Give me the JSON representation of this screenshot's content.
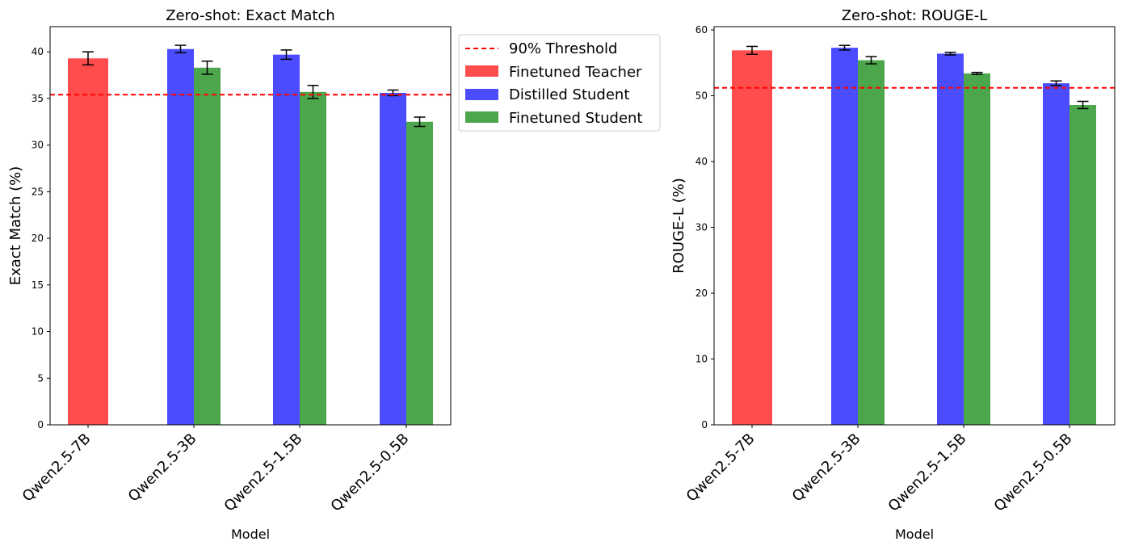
{
  "figure_title": "",
  "legend": {
    "threshold_label": "90% Threshold",
    "items": [
      {
        "label": "Finetuned Teacher",
        "color": "#ff4c4c"
      },
      {
        "label": "Distilled Student",
        "color": "#4c4cff"
      },
      {
        "label": "Finetuned Student",
        "color": "#4ca64c"
      }
    ],
    "placement": "outside right of first chart, top"
  },
  "threshold_color": "#ff0000",
  "chart_data": [
    {
      "type": "bar",
      "title": "Zero-shot: Exact Match",
      "xlabel": "Model",
      "ylabel": "Exact Match (%)",
      "categories": [
        "Qwen2.5-7B",
        "Qwen2.5-3B",
        "Qwen2.5-1.5B",
        "Qwen2.5-0.5B"
      ],
      "ylim": [
        0,
        42.7
      ],
      "yticks": [
        0,
        5,
        10,
        15,
        20,
        25,
        30,
        35,
        40
      ],
      "threshold": 35.4,
      "grid": false,
      "series": [
        {
          "name": "Finetuned Teacher",
          "values": [
            39.3,
            null,
            null,
            null
          ],
          "errors": [
            0.7,
            null,
            null,
            null
          ]
        },
        {
          "name": "Distilled Student",
          "values": [
            null,
            40.3,
            39.7,
            35.6
          ],
          "errors": [
            null,
            0.4,
            0.5,
            0.3
          ]
        },
        {
          "name": "Finetuned Student",
          "values": [
            null,
            38.3,
            35.7,
            32.5
          ],
          "errors": [
            null,
            0.7,
            0.7,
            0.5
          ]
        }
      ]
    },
    {
      "type": "bar",
      "title": "Zero-shot: ROUGE-L",
      "xlabel": "Model",
      "ylabel": "ROUGE-L (%)",
      "categories": [
        "Qwen2.5-7B",
        "Qwen2.5-3B",
        "Qwen2.5-1.5B",
        "Qwen2.5-0.5B"
      ],
      "ylim": [
        0,
        60.5
      ],
      "yticks": [
        0,
        10,
        20,
        30,
        40,
        50,
        60
      ],
      "threshold": 51.2,
      "grid": false,
      "series": [
        {
          "name": "Finetuned Teacher",
          "values": [
            56.9,
            null,
            null,
            null
          ],
          "errors": [
            0.6,
            null,
            null,
            null
          ]
        },
        {
          "name": "Distilled Student",
          "values": [
            null,
            57.3,
            56.4,
            51.9
          ],
          "errors": [
            null,
            0.35,
            0.2,
            0.35
          ]
        },
        {
          "name": "Finetuned Student",
          "values": [
            null,
            55.4,
            53.4,
            48.6
          ],
          "errors": [
            null,
            0.55,
            0.15,
            0.55
          ]
        }
      ]
    }
  ]
}
